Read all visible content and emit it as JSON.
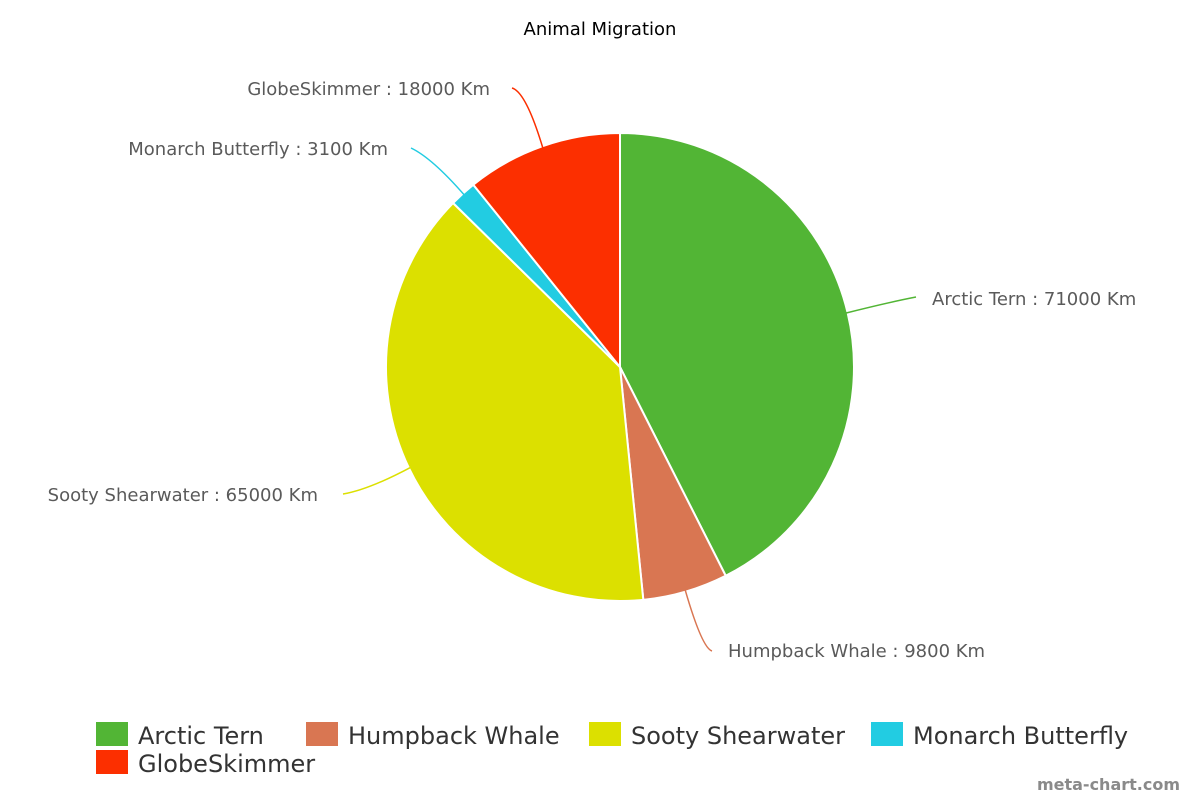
{
  "chart_data": {
    "type": "pie",
    "title": "Animal Migration",
    "unit": "Km",
    "label_separator": " : ",
    "categories": [
      "Arctic Tern",
      "Humpback Whale",
      "Sooty Shearwater",
      "Monarch Butterfly",
      "GlobeSkimmer"
    ],
    "values": [
      71000,
      9800,
      65000,
      3100,
      18000
    ],
    "colors": [
      "#52b535",
      "#d97652",
      "#dce000",
      "#22cce2",
      "#fc2f00"
    ],
    "legend_position": "bottom"
  },
  "watermark": "meta-chart.com"
}
